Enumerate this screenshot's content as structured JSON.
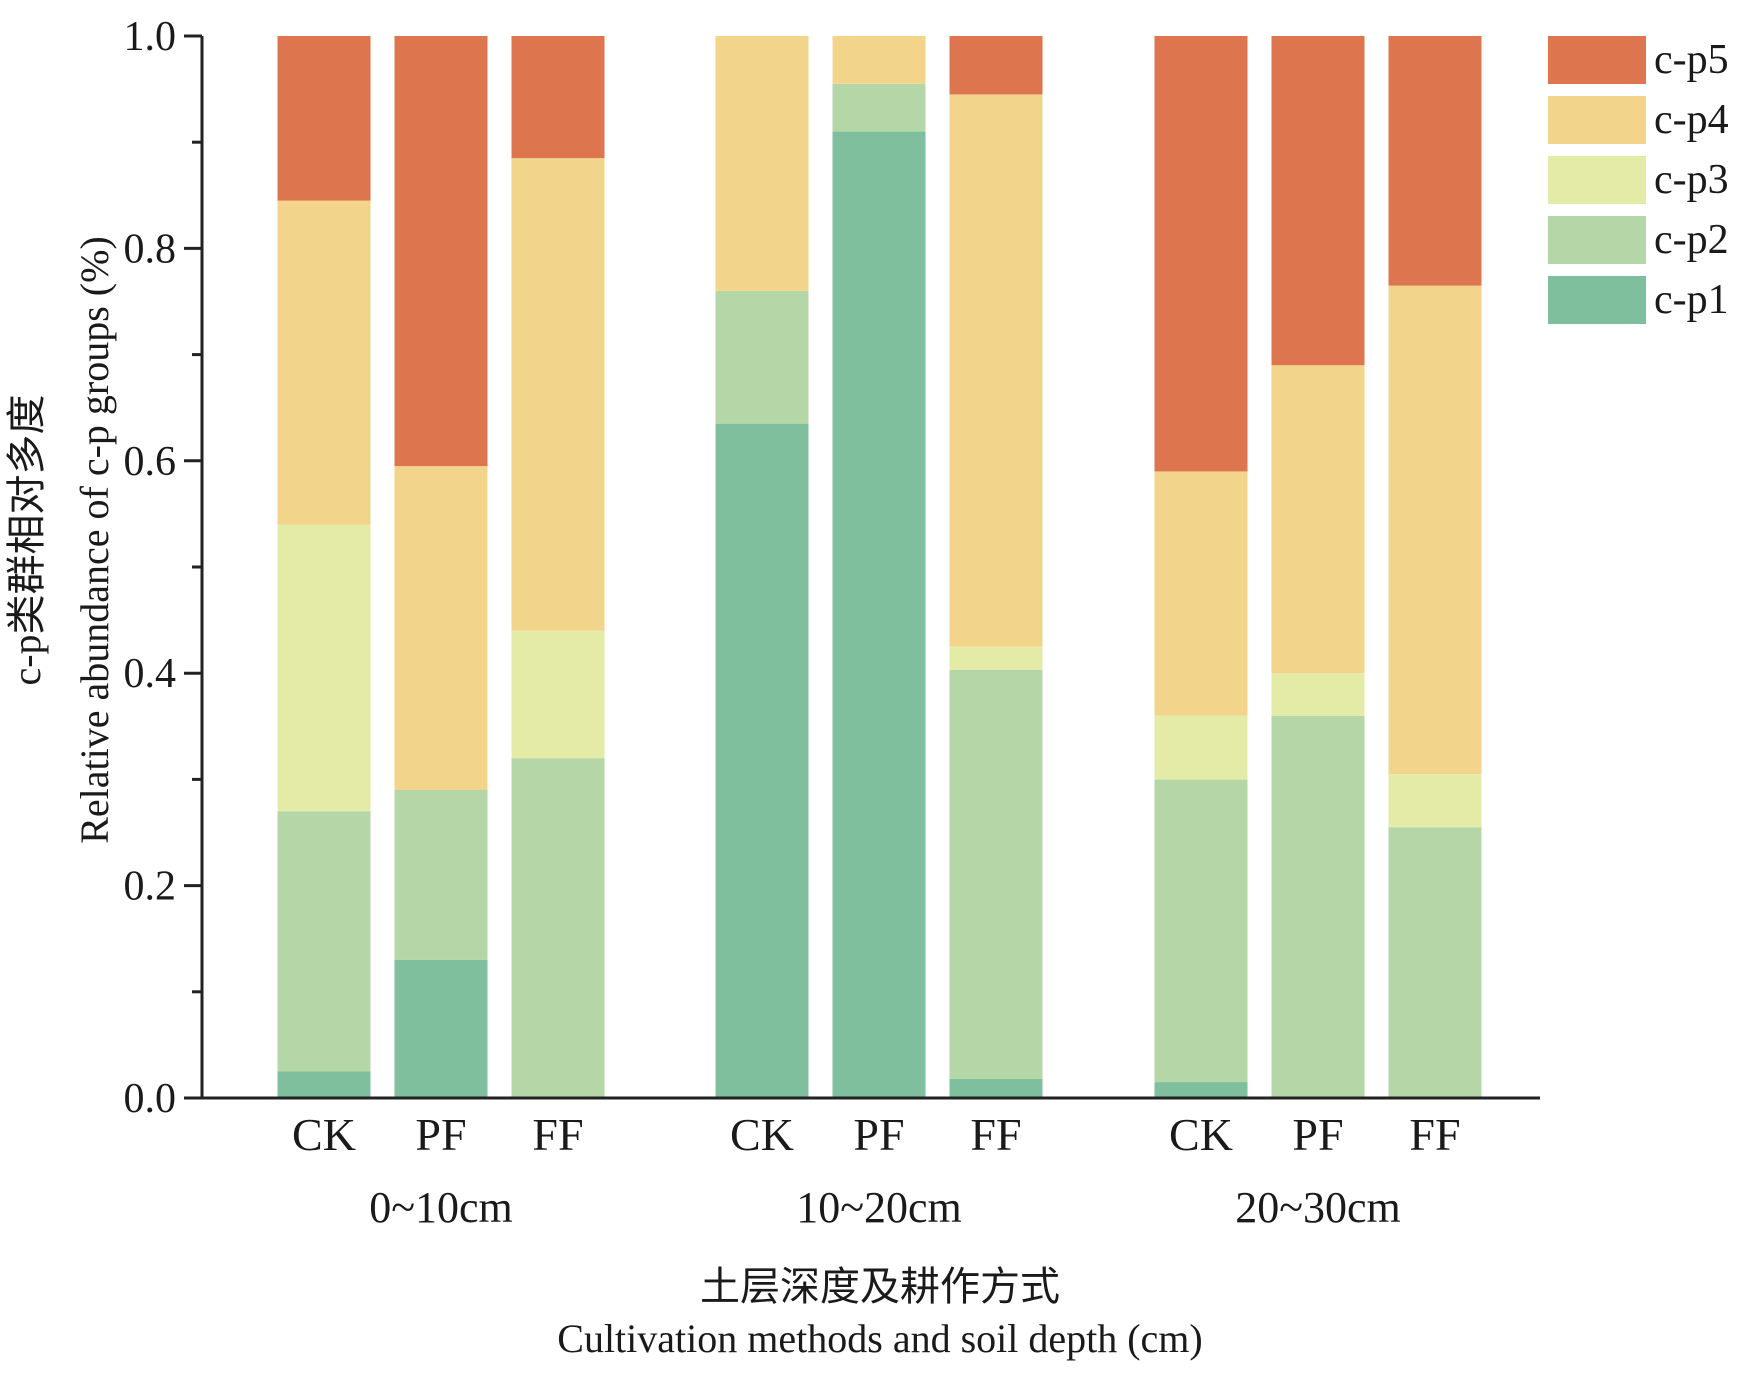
{
  "chart_data": {
    "type": "bar",
    "stacked": true,
    "groups": [
      "0~10cm",
      "10~20cm",
      "20~30cm"
    ],
    "treatments": [
      "CK",
      "PF",
      "FF"
    ],
    "categories": [
      "CK",
      "PF",
      "FF",
      "CK",
      "PF",
      "FF",
      "CK",
      "PF",
      "FF"
    ],
    "series": [
      {
        "name": "c-p1",
        "color": "#7fbf9e",
        "values": [
          0.025,
          0.13,
          0.0,
          0.635,
          0.91,
          0.018,
          0.015,
          0.0,
          0.0
        ]
      },
      {
        "name": "c-p2",
        "color": "#b5d6a7",
        "values": [
          0.245,
          0.16,
          0.32,
          0.125,
          0.045,
          0.385,
          0.285,
          0.36,
          0.255
        ]
      },
      {
        "name": "c-p3",
        "color": "#e3eba6",
        "values": [
          0.27,
          0.0,
          0.12,
          0.0,
          0.0,
          0.022,
          0.06,
          0.04,
          0.05
        ]
      },
      {
        "name": "c-p4",
        "color": "#f2d58a",
        "values": [
          0.305,
          0.305,
          0.445,
          0.24,
          0.045,
          0.52,
          0.23,
          0.29,
          0.46
        ]
      },
      {
        "name": "c-p5",
        "color": "#dd754e",
        "values": [
          0.155,
          0.405,
          0.115,
          0.0,
          0.0,
          0.055,
          0.41,
          0.31,
          0.235
        ]
      }
    ],
    "ylim": [
      0,
      1.0
    ],
    "yticks": [
      "0.0",
      "0.2",
      "0.4",
      "0.6",
      "0.8",
      "1.0"
    ],
    "ylabel_cn": "c-p类群相对多度",
    "ylabel_en": "Relative abundance of c-p groups (%)",
    "xlabel_cn": "土层深度及耕作方式",
    "xlabel_en": "Cultivation methods and soil depth (cm)",
    "legend_position": "right-top",
    "legend_order": [
      "c-p5",
      "c-p4",
      "c-p3",
      "c-p2",
      "c-p1"
    ],
    "grid": false
  }
}
